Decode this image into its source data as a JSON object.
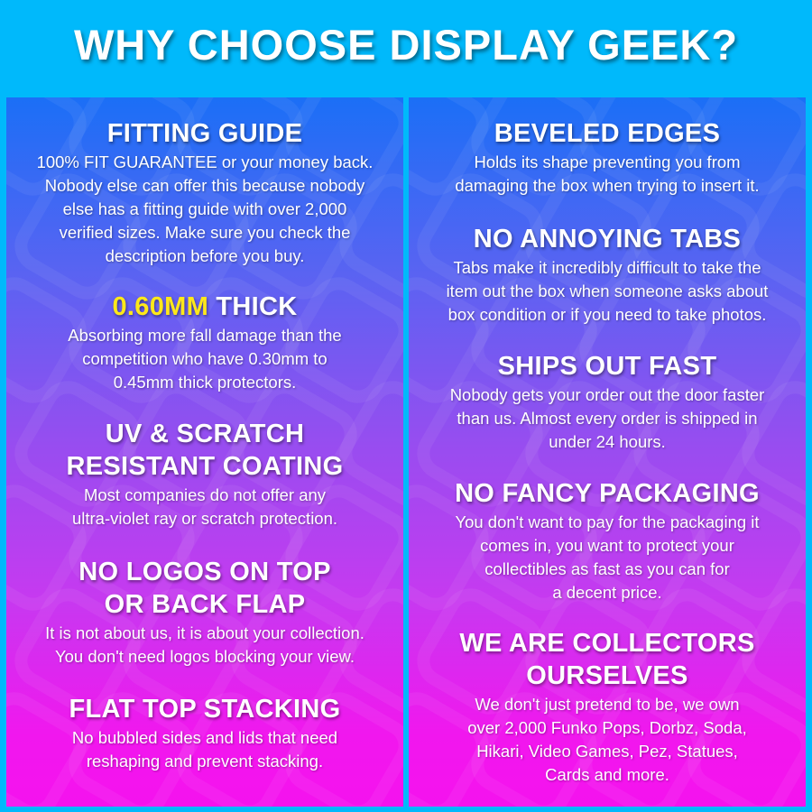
{
  "title": "WHY CHOOSE DISPLAY GEEK?",
  "colors": {
    "background": "#00b9fb",
    "gradient_top": "#1b6ff6",
    "gradient_mid": "#9a4cf0",
    "gradient_bottom": "#f117ee",
    "highlight": "#ffe81a"
  },
  "left": [
    {
      "heading": [
        "FITTING GUIDE"
      ],
      "body": [
        "100% FIT GUARANTEE or your money back.",
        "Nobody else can offer this because nobody",
        "else has a fitting guide with over 2,000",
        "verified sizes. Make sure you check the",
        "description before you buy."
      ]
    },
    {
      "heading_highlight": "0.60MM",
      "heading": [
        " THICK"
      ],
      "body": [
        "Absorbing more fall damage than the",
        "competition who have 0.30mm to",
        "0.45mm thick protectors."
      ]
    },
    {
      "heading": [
        "UV & SCRATCH",
        "RESISTANT COATING"
      ],
      "body": [
        "Most companies do not offer any",
        "ultra-violet ray or scratch protection."
      ]
    },
    {
      "heading": [
        "NO LOGOS ON TOP",
        "OR BACK FLAP"
      ],
      "body": [
        "It is not about us, it is about your collection.",
        "You don't need logos blocking your view."
      ]
    },
    {
      "heading": [
        "FLAT TOP STACKING"
      ],
      "body": [
        "No bubbled sides and lids that need",
        "reshaping and prevent stacking."
      ]
    }
  ],
  "right": [
    {
      "heading": [
        "BEVELED EDGES"
      ],
      "body": [
        "Holds its shape preventing you from",
        "damaging the box when trying to insert it."
      ]
    },
    {
      "heading": [
        "NO ANNOYING TABS"
      ],
      "body": [
        "Tabs make it incredibly difficult to take the",
        "item out the box when someone asks about",
        "box condition or if you need to take photos."
      ]
    },
    {
      "heading": [
        "SHIPS OUT FAST"
      ],
      "body": [
        "Nobody gets your order out the door faster",
        "than us. Almost every order is shipped in",
        "under 24 hours."
      ]
    },
    {
      "heading": [
        "NO FANCY PACKAGING"
      ],
      "body": [
        "You don't want to pay for the packaging it",
        "comes in, you want to protect your",
        "collectibles as fast as you can for",
        "a decent price."
      ]
    },
    {
      "heading": [
        "WE ARE COLLECTORS",
        "OURSELVES"
      ],
      "body": [
        "We don't just pretend to be, we own",
        "over 2,000 Funko Pops, Dorbz, Soda,",
        "Hikari, Video Games, Pez, Statues,",
        "Cards and more."
      ]
    }
  ]
}
